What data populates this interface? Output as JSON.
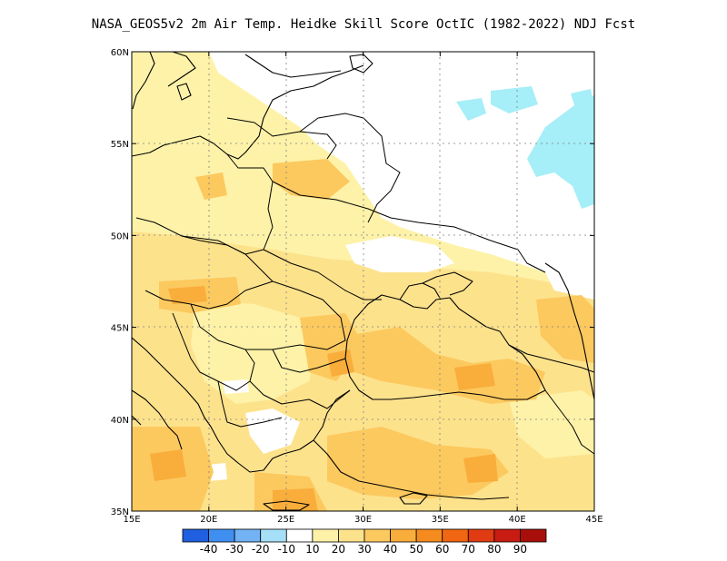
{
  "title": "NASA_GEOS5v2  2m Air Temp. Heidke Skill Score OctIC (1982-2022) NDJ Fcst",
  "map": {
    "lon_range": [
      15,
      45
    ],
    "lat_range": [
      35,
      60
    ],
    "lon_ticks": [
      "15E",
      "20E",
      "25E",
      "30E",
      "35E",
      "40E",
      "45E"
    ],
    "lat_ticks": [
      "35N",
      "40N",
      "45N",
      "50N",
      "55N",
      "60N"
    ],
    "gridlines": true
  },
  "colorbar": {
    "colors": [
      "#1f5fe0",
      "#3f8ff0",
      "#72b2f5",
      "#a6dff8",
      "#ffffff",
      "#fdf2a8",
      "#fde28c",
      "#fcc95f",
      "#f9ad3a",
      "#f58b1f",
      "#f06612",
      "#e03b12",
      "#c81c12",
      "#a80f0a"
    ],
    "labels": [
      "-40",
      "-30",
      "-20",
      "-10",
      "10",
      "20",
      "30",
      "40",
      "50",
      "60",
      "70",
      "80",
      "90"
    ]
  },
  "colors": {
    "land_light": "#fdf2a8",
    "land_mid": "#fde28c",
    "land_orange": "#fcc95f",
    "land_dark": "#f9ad3a",
    "negative": "#a6eef8",
    "border": "#000000"
  }
}
